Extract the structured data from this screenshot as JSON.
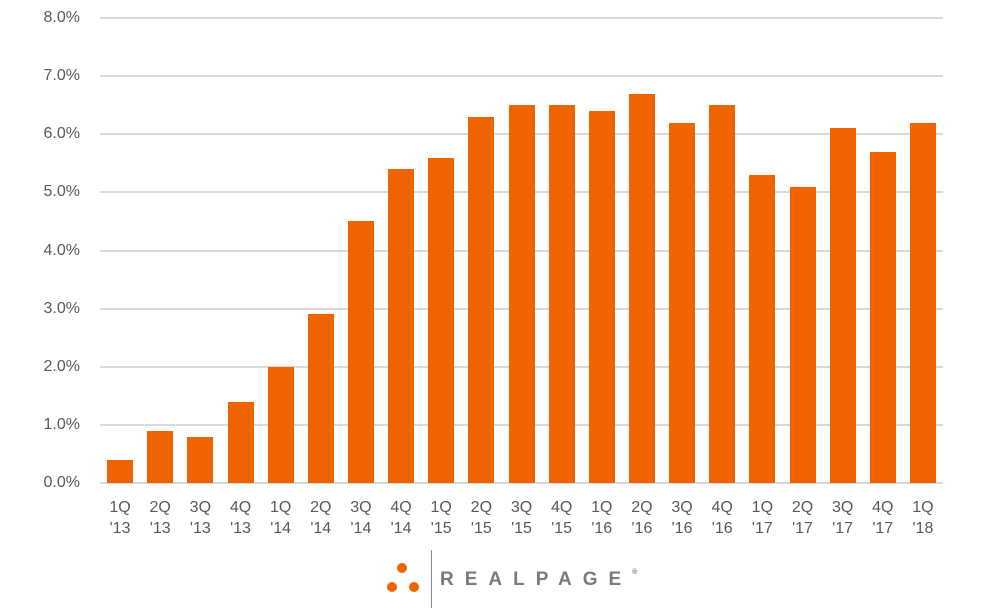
{
  "chart_data": {
    "type": "bar",
    "title": "",
    "xlabel": "",
    "ylabel": "",
    "ylim": [
      0,
      8
    ],
    "yticks": [
      "0.0%",
      "1.0%",
      "2.0%",
      "3.0%",
      "4.0%",
      "5.0%",
      "6.0%",
      "7.0%",
      "8.0%"
    ],
    "grid": true,
    "legend": null,
    "categories": [
      "1Q '13",
      "2Q '13",
      "3Q '13",
      "4Q '13",
      "1Q '14",
      "2Q '14",
      "3Q '14",
      "4Q '14",
      "1Q '15",
      "2Q '15",
      "3Q '15",
      "4Q '15",
      "1Q '16",
      "2Q '16",
      "3Q '16",
      "4Q '16",
      "1Q '17",
      "2Q '17",
      "3Q '17",
      "4Q '17",
      "1Q '18"
    ],
    "category_lines": [
      [
        "1Q",
        "'13"
      ],
      [
        "2Q",
        "'13"
      ],
      [
        "3Q",
        "'13"
      ],
      [
        "4Q",
        "'13"
      ],
      [
        "1Q",
        "'14"
      ],
      [
        "2Q",
        "'14"
      ],
      [
        "3Q",
        "'14"
      ],
      [
        "4Q",
        "'14"
      ],
      [
        "1Q",
        "'15"
      ],
      [
        "2Q",
        "'15"
      ],
      [
        "3Q",
        "'15"
      ],
      [
        "4Q",
        "'15"
      ],
      [
        "1Q",
        "'16"
      ],
      [
        "2Q",
        "'16"
      ],
      [
        "3Q",
        "'16"
      ],
      [
        "4Q",
        "'16"
      ],
      [
        "1Q",
        "'17"
      ],
      [
        "2Q",
        "'17"
      ],
      [
        "3Q",
        "'17"
      ],
      [
        "4Q",
        "'17"
      ],
      [
        "1Q",
        "'18"
      ]
    ],
    "values": [
      0.4,
      0.9,
      0.8,
      1.4,
      2.0,
      2.9,
      4.5,
      5.4,
      5.6,
      6.3,
      6.5,
      6.5,
      6.4,
      6.7,
      6.2,
      6.5,
      5.3,
      5.1,
      6.1,
      5.7,
      6.2
    ],
    "unit": "%",
    "colors": {
      "bar": "#f06400",
      "grid": "#d9d9d9",
      "text": "#595959"
    }
  },
  "branding": {
    "logo_text": "REALPAGE",
    "registered_mark": "®",
    "dot_color": "#f06400",
    "text_color": "#7a7a7a"
  }
}
